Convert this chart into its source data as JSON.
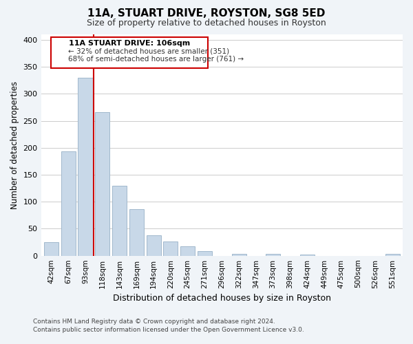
{
  "title": "11A, STUART DRIVE, ROYSTON, SG8 5ED",
  "subtitle": "Size of property relative to detached houses in Royston",
  "xlabel": "Distribution of detached houses by size in Royston",
  "ylabel": "Number of detached properties",
  "bar_labels": [
    "42sqm",
    "67sqm",
    "93sqm",
    "118sqm",
    "143sqm",
    "169sqm",
    "194sqm",
    "220sqm",
    "245sqm",
    "271sqm",
    "296sqm",
    "322sqm",
    "347sqm",
    "373sqm",
    "398sqm",
    "424sqm",
    "449sqm",
    "475sqm",
    "500sqm",
    "526sqm",
    "551sqm"
  ],
  "bar_values": [
    25,
    193,
    330,
    266,
    130,
    86,
    38,
    26,
    18,
    8,
    0,
    4,
    0,
    3,
    0,
    2,
    0,
    0,
    0,
    0,
    3
  ],
  "bar_color": "#c8d8e8",
  "bar_edge_color": "#a0b8cc",
  "vline_x_index": 2.5,
  "vline_color": "#cc0000",
  "ylim": [
    0,
    410
  ],
  "yticks": [
    0,
    50,
    100,
    150,
    200,
    250,
    300,
    350,
    400
  ],
  "annotation_title": "11A STUART DRIVE: 106sqm",
  "annotation_line1": "← 32% of detached houses are smaller (351)",
  "annotation_line2": "68% of semi-detached houses are larger (761) →",
  "annotation_box_color": "#ffffff",
  "annotation_box_edge_color": "#cc0000",
  "footer_line1": "Contains HM Land Registry data © Crown copyright and database right 2024.",
  "footer_line2": "Contains public sector information licensed under the Open Government Licence v3.0.",
  "background_color": "#f0f4f8",
  "plot_background_color": "#ffffff"
}
